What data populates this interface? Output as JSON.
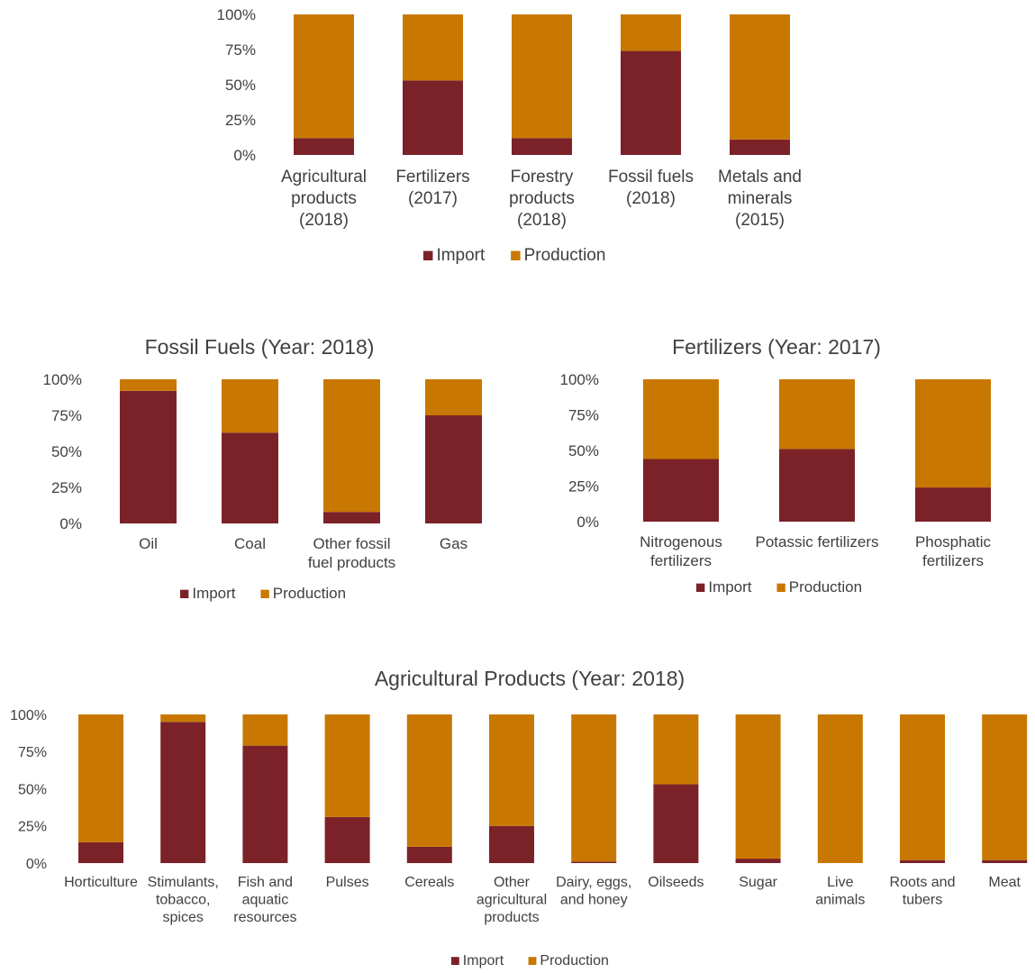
{
  "colors": {
    "import": "#7B2228",
    "production": "#C87800",
    "text": "#404040"
  },
  "chart_data": [
    {
      "type": "bar",
      "stacked": true,
      "title": "",
      "y_tick_labels": [
        "0%",
        "25%",
        "50%",
        "75%",
        "100%"
      ],
      "ylim": [
        0,
        100
      ],
      "categories": [
        [
          "Agricultural",
          "products",
          "(2018)"
        ],
        [
          "Fertilizers",
          "(2017)"
        ],
        [
          "Forestry",
          "products",
          "(2018)"
        ],
        [
          "Fossil fuels",
          "(2018)"
        ],
        [
          "Metals and",
          "minerals",
          "(2015)"
        ]
      ],
      "series": [
        {
          "name": "Import",
          "values": [
            12,
            53,
            12,
            74,
            11
          ]
        },
        {
          "name": "Production",
          "values": [
            88,
            47,
            88,
            26,
            89
          ]
        }
      ],
      "legend": "bottom",
      "grid": false
    },
    {
      "type": "bar",
      "stacked": true,
      "title": "Fossil Fuels (Year: 2018)",
      "y_tick_labels": [
        "0%",
        "25%",
        "50%",
        "75%",
        "100%"
      ],
      "ylim": [
        0,
        100
      ],
      "categories": [
        [
          "Oil"
        ],
        [
          "Coal"
        ],
        [
          "Other fossil",
          "fuel products"
        ],
        [
          "Gas"
        ]
      ],
      "series": [
        {
          "name": "Import",
          "values": [
            92,
            63,
            8,
            75
          ]
        },
        {
          "name": "Production",
          "values": [
            8,
            37,
            92,
            25
          ]
        }
      ],
      "legend": "bottom",
      "grid": false
    },
    {
      "type": "bar",
      "stacked": true,
      "title": "Fertilizers (Year: 2017)",
      "y_tick_labels": [
        "0%",
        "25%",
        "50%",
        "75%",
        "100%"
      ],
      "ylim": [
        0,
        100
      ],
      "categories": [
        [
          "Nitrogenous",
          "fertilizers"
        ],
        [
          "Potassic fertilizers"
        ],
        [
          "Phosphatic",
          "fertilizers"
        ]
      ],
      "series": [
        {
          "name": "Import",
          "values": [
            44,
            51,
            24
          ]
        },
        {
          "name": "Production",
          "values": [
            56,
            49,
            76
          ]
        }
      ],
      "legend": "bottom",
      "grid": false
    },
    {
      "type": "bar",
      "stacked": true,
      "title": "Agricultural Products (Year: 2018)",
      "y_tick_labels": [
        "0%",
        "25%",
        "50%",
        "75%",
        "100%"
      ],
      "ylim": [
        0,
        100
      ],
      "categories": [
        [
          "Horticulture"
        ],
        [
          "Stimulants,",
          "tobacco,",
          "spices"
        ],
        [
          "Fish and",
          "aquatic",
          "resources"
        ],
        [
          "Pulses"
        ],
        [
          "Cereals"
        ],
        [
          "Other",
          "agricultural",
          "products"
        ],
        [
          "Dairy, eggs,",
          "and honey"
        ],
        [
          "Oilseeds"
        ],
        [
          "Sugar"
        ],
        [
          "Live",
          "animals"
        ],
        [
          "Roots and",
          "tubers"
        ],
        [
          "Meat"
        ]
      ],
      "series": [
        {
          "name": "Import",
          "values": [
            14,
            95,
            79,
            31,
            11,
            25,
            1,
            53,
            3,
            0,
            2,
            2
          ]
        },
        {
          "name": "Production",
          "values": [
            86,
            5,
            21,
            69,
            89,
            75,
            99,
            47,
            97,
            100,
            98,
            98
          ]
        }
      ],
      "legend": "bottom",
      "grid": false
    }
  ]
}
